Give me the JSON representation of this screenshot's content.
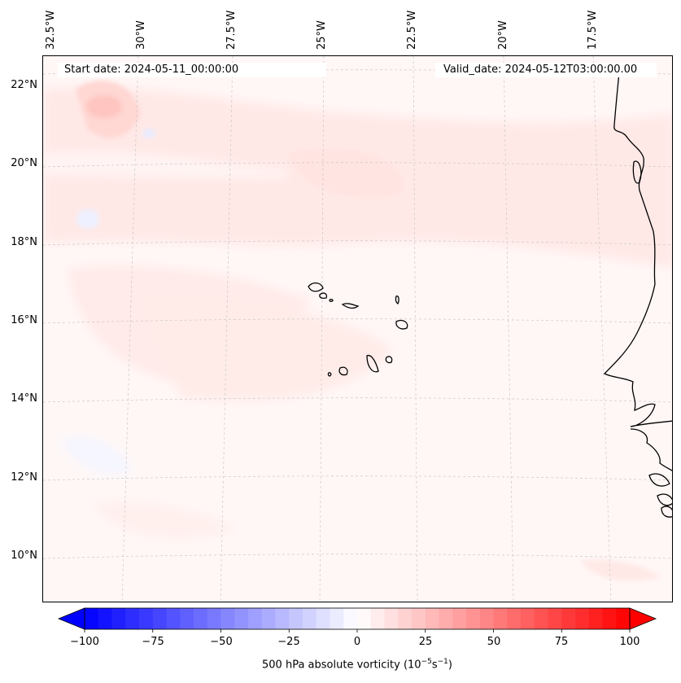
{
  "map": {
    "start_date_label": "Start date: 2024-05-11_00:00:00",
    "valid_date_label": "Valid_date: 2024-05-12T03:00:00.00",
    "lon_labels": [
      "32.5°W",
      "30°W",
      "27.5°W",
      "25°W",
      "22.5°W",
      "20°W",
      "17.5°W"
    ],
    "lat_labels": [
      "22°N",
      "20°N",
      "18°N",
      "16°N",
      "14°N",
      "12°N",
      "10°N"
    ],
    "field": "500 hPa absolute vorticity",
    "coastline_color": "#000000",
    "gridline_color": "#c8c8c8"
  },
  "colorbar": {
    "title_text": "500 hPa absolute vorticity (10",
    "title_exp1": "−5",
    "title_mid": "s",
    "title_exp2": "−1",
    "title_close": ")",
    "ticks": [
      "−100",
      "−75",
      "−50",
      "−25",
      "0",
      "25",
      "50",
      "75",
      "100"
    ],
    "min": -100,
    "max": 100,
    "levels": 41,
    "colormap": "bwr",
    "low_color": "#0000ff",
    "mid_color": "#ffffff",
    "high_color": "#ff0000"
  }
}
